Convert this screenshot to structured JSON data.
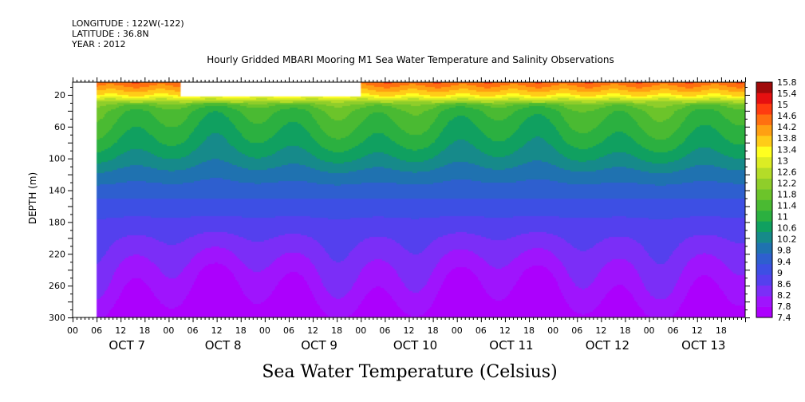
{
  "header": {
    "longitude": "LONGITUDE : 122W(-122)",
    "latitude": "LATITUDE : 36.8N",
    "year": "YEAR : 2012"
  },
  "title": "Hourly Gridded MBARI Mooring M1 Sea Water Temperature and Salinity Observations",
  "bottom_title": "Sea Water Temperature (Celsius)",
  "chart_data": {
    "type": "heatmap",
    "title": "Hourly Gridded MBARI Mooring M1 Sea Water Temperature and Salinity Observations",
    "xlabel": "",
    "ylabel": "DEPTH (m)",
    "colorbar_label": "Sea Water Temperature (Celsius)",
    "x_hour_range": [
      0,
      168
    ],
    "x_hour_ticks": [
      "00",
      "06",
      "12",
      "18",
      "00",
      "06",
      "12",
      "18",
      "00",
      "06",
      "12",
      "18",
      "00",
      "06",
      "12",
      "18",
      "00",
      "06",
      "12",
      "18",
      "00",
      "06",
      "12",
      "18",
      "00",
      "06",
      "12",
      "18"
    ],
    "x_day_labels": [
      "OCT 7",
      "OCT 8",
      "OCT 9",
      "OCT 10",
      "OCT 11",
      "OCT 12",
      "OCT 13"
    ],
    "data_start_hour": 6,
    "ylim": [
      300,
      4
    ],
    "y_ticks": [
      20,
      60,
      100,
      140,
      180,
      220,
      260,
      300
    ],
    "colorbar_levels": [
      7.4,
      7.8,
      8.2,
      8.6,
      9,
      9.4,
      9.8,
      10.2,
      10.6,
      11,
      11.4,
      11.8,
      12.2,
      12.6,
      13,
      13.4,
      13.8,
      14.2,
      14.6,
      15,
      15.4,
      15.8
    ],
    "colorbar_colors": [
      "#ac00fd",
      "#9f14fd",
      "#7b2ef7",
      "#5440ee",
      "#3d4fe4",
      "#2e5fcf",
      "#1f72b0",
      "#168a8a",
      "#10a060",
      "#2bb040",
      "#4aba32",
      "#6cc42a",
      "#8fce2a",
      "#b4dc28",
      "#dcec24",
      "#ffff20",
      "#ffcc18",
      "#ffa012",
      "#ff7010",
      "#ff3c10",
      "#e61010",
      "#a00a0a"
    ],
    "missing_blocks": [
      {
        "x_hours": [
          0,
          6
        ],
        "depth": [
          4,
          300
        ]
      },
      {
        "x_hours": [
          27,
          72
        ],
        "depth": [
          4,
          22
        ]
      }
    ],
    "mean_profile": [
      {
        "depth": 4,
        "temp": 14.9
      },
      {
        "depth": 10,
        "temp": 14.5
      },
      {
        "depth": 20,
        "temp": 13.8
      },
      {
        "depth": 28,
        "temp": 12.6
      },
      {
        "depth": 32,
        "temp": 11.9
      },
      {
        "depth": 40,
        "temp": 11.5
      },
      {
        "depth": 60,
        "temp": 11.2
      },
      {
        "depth": 80,
        "temp": 10.9
      },
      {
        "depth": 100,
        "temp": 10.5
      },
      {
        "depth": 120,
        "temp": 10.0
      },
      {
        "depth": 140,
        "temp": 9.6
      },
      {
        "depth": 160,
        "temp": 9.2
      },
      {
        "depth": 180,
        "temp": 8.9
      },
      {
        "depth": 200,
        "temp": 8.6
      },
      {
        "depth": 220,
        "temp": 8.35
      },
      {
        "depth": 240,
        "temp": 8.1
      },
      {
        "depth": 260,
        "temp": 7.9
      },
      {
        "depth": 280,
        "temp": 7.7
      },
      {
        "depth": 300,
        "temp": 7.5
      }
    ]
  }
}
